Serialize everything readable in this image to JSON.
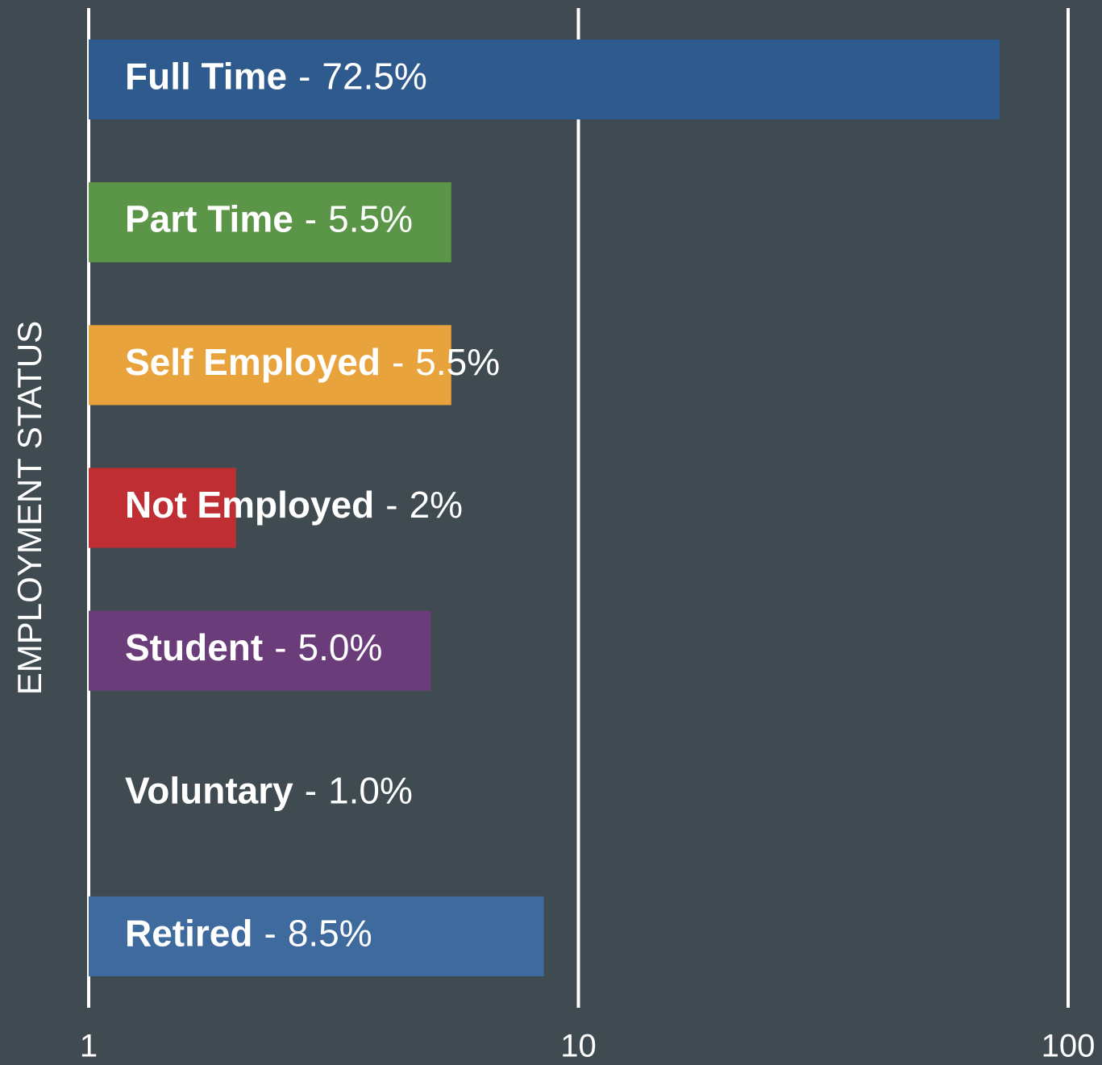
{
  "chart_data": {
    "type": "bar",
    "orientation": "horizontal",
    "y_axis_label": "EMPLOYMENT STATUS",
    "categories": [
      "Full Time",
      "Part Time",
      "Self Employed",
      "Not Employed",
      "Student",
      "Voluntary",
      "Retired"
    ],
    "values": [
      72.5,
      5.5,
      5.5,
      2,
      5.0,
      1.0,
      8.5
    ],
    "value_labels": [
      "72.5%",
      "5.5%",
      "5.5%",
      "2%",
      "5.0%",
      "1.0%",
      "8.5%"
    ],
    "separator": "-",
    "colors": [
      "#2e5a8e",
      "#5b9648",
      "#e8a33d",
      "#be2e32",
      "#6b3c7a",
      "#7f7f7f",
      "#3f6a9e"
    ],
    "xscale": "log",
    "xlim": [
      1,
      100
    ],
    "xticks": [
      1,
      10,
      100
    ],
    "grid": true
  }
}
